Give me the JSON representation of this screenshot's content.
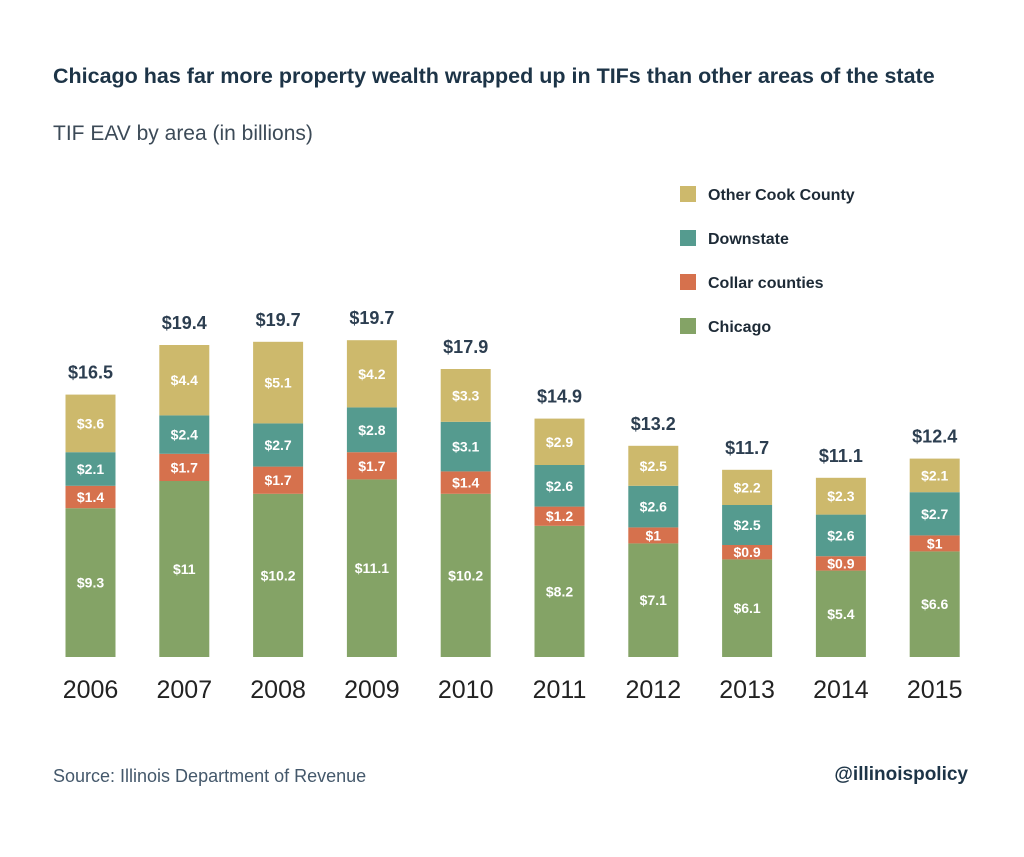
{
  "chart_data": {
    "type": "bar",
    "stacked": true,
    "title": "Chicago has far more property wealth wrapped up in TIFs than other areas of the state",
    "subtitle": "TIF EAV by area (in billions)",
    "categories": [
      "2006",
      "2007",
      "2008",
      "2009",
      "2010",
      "2011",
      "2012",
      "2013",
      "2014",
      "2015"
    ],
    "series": [
      {
        "name": "Chicago",
        "color": "#84a366",
        "values": [
          9.3,
          11,
          10.2,
          11.1,
          10.2,
          8.2,
          7.1,
          6.1,
          5.4,
          6.6
        ]
      },
      {
        "name": "Collar counties",
        "color": "#d6714d",
        "values": [
          1.4,
          1.7,
          1.7,
          1.7,
          1.4,
          1.2,
          1,
          0.9,
          0.9,
          1
        ]
      },
      {
        "name": "Downstate",
        "color": "#559b8f",
        "values": [
          2.1,
          2.4,
          2.7,
          2.8,
          3.1,
          2.6,
          2.6,
          2.5,
          2.6,
          2.7
        ]
      },
      {
        "name": "Other Cook County",
        "color": "#cdb96c",
        "values": [
          3.6,
          4.4,
          5.1,
          4.2,
          3.3,
          2.9,
          2.5,
          2.2,
          2.3,
          2.1
        ]
      }
    ],
    "totals": [
      16.5,
      19.4,
      19.7,
      19.7,
      17.9,
      14.9,
      13.2,
      11.7,
      11.1,
      12.4
    ],
    "value_prefix": "$",
    "legend_order": [
      "Other Cook County",
      "Downstate",
      "Collar counties",
      "Chicago"
    ],
    "legend_placement": "top-right",
    "grid": false,
    "xlabel": "",
    "ylabel": ""
  },
  "footer": {
    "source": "Source: Illinois Department of Revenue",
    "handle": "@illinoispolicy"
  }
}
